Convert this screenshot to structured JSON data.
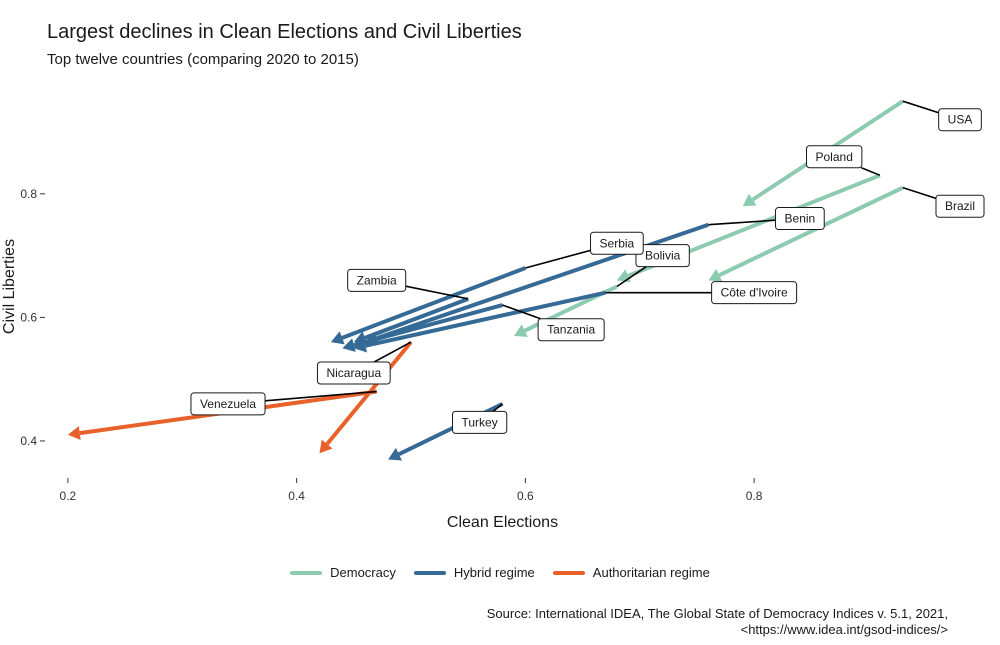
{
  "header": {
    "title": "Largest declines in Clean Elections and Civil Liberties",
    "subtitle": "Top twelve countries (comparing 2020 to 2015)"
  },
  "colors": {
    "Democracy": "#8dcbb0",
    "Hybrid regime": "#356a96",
    "Authoritarian regime": "#e8612a"
  },
  "chart_data": {
    "type": "arrow-scatter",
    "xlabel": "Clean Elections",
    "ylabel": "Civil Liberties",
    "xlim": [
      0.18,
      0.98
    ],
    "ylim": [
      0.34,
      0.96
    ],
    "xticks": [
      0.2,
      0.4,
      0.6,
      0.8
    ],
    "xtick_labels": [
      "0.2",
      "0.4",
      "0.6",
      "0.8"
    ],
    "yticks": [
      0.4,
      0.6,
      0.8
    ],
    "ytick_labels": [
      "0.4",
      "0.6",
      "0.8"
    ],
    "grid": false,
    "legend": "bottom",
    "series": [
      {
        "country": "USA",
        "regime": "Democracy",
        "x2015": 0.93,
        "y2015": 0.95,
        "x2020": 0.79,
        "y2020": 0.78,
        "label_x": 0.98,
        "label_y": 0.92
      },
      {
        "country": "Poland",
        "regime": "Democracy",
        "x2015": 0.91,
        "y2015": 0.83,
        "x2020": 0.68,
        "y2020": 0.66,
        "label_x": 0.87,
        "label_y": 0.86
      },
      {
        "country": "Brazil",
        "regime": "Democracy",
        "x2015": 0.93,
        "y2015": 0.81,
        "x2020": 0.76,
        "y2020": 0.66,
        "label_x": 0.98,
        "label_y": 0.78
      },
      {
        "country": "Bolivia",
        "regime": "Democracy",
        "x2015": 0.68,
        "y2015": 0.65,
        "x2020": 0.59,
        "y2020": 0.57,
        "label_x": 0.72,
        "label_y": 0.7
      },
      {
        "country": "Benin",
        "regime": "Hybrid regime",
        "x2015": 0.76,
        "y2015": 0.75,
        "x2020": 0.46,
        "y2020": 0.56,
        "label_x": 0.84,
        "label_y": 0.76
      },
      {
        "country": "Serbia",
        "regime": "Hybrid regime",
        "x2015": 0.6,
        "y2015": 0.68,
        "x2020": 0.43,
        "y2020": 0.56,
        "label_x": 0.68,
        "label_y": 0.72
      },
      {
        "country": "Zambia",
        "regime": "Hybrid regime",
        "x2015": 0.55,
        "y2015": 0.63,
        "x2020": 0.45,
        "y2020": 0.56,
        "label_x": 0.47,
        "label_y": 0.66
      },
      {
        "country": "Côte d'Ivoire",
        "regime": "Hybrid regime",
        "x2015": 0.67,
        "y2015": 0.64,
        "x2020": 0.45,
        "y2020": 0.55,
        "label_x": 0.8,
        "label_y": 0.64
      },
      {
        "country": "Tanzania",
        "regime": "Hybrid regime",
        "x2015": 0.58,
        "y2015": 0.62,
        "x2020": 0.44,
        "y2020": 0.55,
        "label_x": 0.64,
        "label_y": 0.58
      },
      {
        "country": "Turkey",
        "regime": "Hybrid regime",
        "x2015": 0.58,
        "y2015": 0.46,
        "x2020": 0.48,
        "y2020": 0.37,
        "label_x": 0.56,
        "label_y": 0.43
      },
      {
        "country": "Nicaragua",
        "regime": "Authoritarian regime",
        "x2015": 0.5,
        "y2015": 0.56,
        "x2020": 0.42,
        "y2020": 0.38,
        "label_x": 0.45,
        "label_y": 0.51
      },
      {
        "country": "Venezuela",
        "regime": "Authoritarian regime",
        "x2015": 0.47,
        "y2015": 0.48,
        "x2020": 0.2,
        "y2020": 0.41,
        "label_x": 0.34,
        "label_y": 0.46
      }
    ]
  },
  "legend": {
    "items": [
      {
        "label": "Democracy",
        "color": "#8dcbb0"
      },
      {
        "label": "Hybrid regime",
        "color": "#356a96"
      },
      {
        "label": "Authoritarian regime",
        "color": "#e8612a"
      }
    ]
  },
  "caption": {
    "line1": "Source: International IDEA, The Global State of Democracy Indices v. 5.1, 2021,",
    "line2": "<https://www.idea.int/gsod-indices/>"
  }
}
